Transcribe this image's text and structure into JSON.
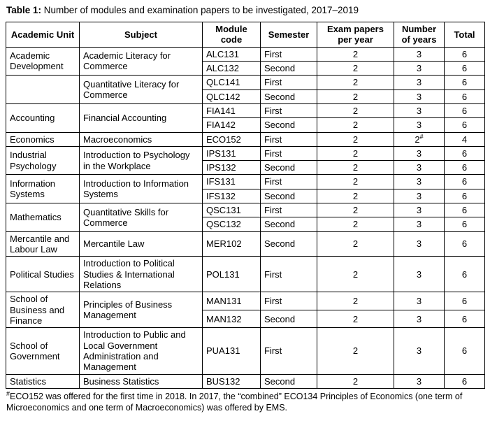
{
  "caption": {
    "prefix": "Table 1:",
    "text": " Number of modules and examination papers to be investigated, 2017–2019"
  },
  "table": {
    "columns": [
      {
        "label": "Academic Unit"
      },
      {
        "label": "Subject"
      },
      {
        "label": "Module code"
      },
      {
        "label": "Semester"
      },
      {
        "label": "Exam papers per year"
      },
      {
        "label": "Number of years"
      },
      {
        "label": "Total"
      }
    ],
    "rows": [
      {
        "cells": [
          {
            "text": "Academic Development",
            "rowspan": 2
          },
          {
            "text": "Academic Literacy for Commerce",
            "rowspan": 2
          },
          {
            "text": "ALC131"
          },
          {
            "text": "First"
          },
          {
            "text": "2"
          },
          {
            "text": "3"
          },
          {
            "text": "6"
          }
        ]
      },
      {
        "cells": [
          {
            "text": "ALC132"
          },
          {
            "text": "Second"
          },
          {
            "text": "2"
          },
          {
            "text": "3"
          },
          {
            "text": "6"
          }
        ]
      },
      {
        "cells": [
          {
            "text": "",
            "rowspan": 2
          },
          {
            "text": "Quantitative Literacy for Commerce",
            "rowspan": 2
          },
          {
            "text": "QLC141"
          },
          {
            "text": "First"
          },
          {
            "text": "2"
          },
          {
            "text": "3"
          },
          {
            "text": "6"
          }
        ]
      },
      {
        "cells": [
          {
            "text": "QLC142"
          },
          {
            "text": "Second"
          },
          {
            "text": "2"
          },
          {
            "text": "3"
          },
          {
            "text": "6"
          }
        ]
      },
      {
        "cells": [
          {
            "text": "Accounting",
            "rowspan": 2
          },
          {
            "text": "Financial Accounting",
            "rowspan": 2
          },
          {
            "text": "FIA141"
          },
          {
            "text": "First"
          },
          {
            "text": "2"
          },
          {
            "text": "3"
          },
          {
            "text": "6"
          }
        ]
      },
      {
        "cells": [
          {
            "text": "FIA142"
          },
          {
            "text": "Second"
          },
          {
            "text": "2"
          },
          {
            "text": "3"
          },
          {
            "text": "6"
          }
        ]
      },
      {
        "cells": [
          {
            "text": "Economics"
          },
          {
            "text": "Macroeconomics"
          },
          {
            "text": "ECO152"
          },
          {
            "text": "First"
          },
          {
            "text": "2"
          },
          {
            "text": "2",
            "sup": "#"
          },
          {
            "text": "4"
          }
        ]
      },
      {
        "cells": [
          {
            "text": "Industrial Psychology",
            "rowspan": 2
          },
          {
            "text": "Introduction to Psychology in the Workplace",
            "rowspan": 2
          },
          {
            "text": "IPS131"
          },
          {
            "text": "First"
          },
          {
            "text": "2"
          },
          {
            "text": "3"
          },
          {
            "text": "6"
          }
        ]
      },
      {
        "cells": [
          {
            "text": "IPS132"
          },
          {
            "text": "Second"
          },
          {
            "text": "2"
          },
          {
            "text": "3"
          },
          {
            "text": "6"
          }
        ]
      },
      {
        "cells": [
          {
            "text": "Information Systems",
            "rowspan": 2
          },
          {
            "text": "Introduction to Information Systems",
            "rowspan": 2
          },
          {
            "text": "IFS131"
          },
          {
            "text": "First"
          },
          {
            "text": "2"
          },
          {
            "text": "3"
          },
          {
            "text": "6"
          }
        ]
      },
      {
        "cells": [
          {
            "text": "IFS132"
          },
          {
            "text": "Second"
          },
          {
            "text": "2"
          },
          {
            "text": "3"
          },
          {
            "text": "6"
          }
        ]
      },
      {
        "cells": [
          {
            "text": "Mathematics",
            "rowspan": 2
          },
          {
            "text": "Quantitative Skills for Commerce",
            "rowspan": 2
          },
          {
            "text": "QSC131"
          },
          {
            "text": "First"
          },
          {
            "text": "2"
          },
          {
            "text": "3"
          },
          {
            "text": "6"
          }
        ]
      },
      {
        "cells": [
          {
            "text": "QSC132"
          },
          {
            "text": "Second"
          },
          {
            "text": "2"
          },
          {
            "text": "3"
          },
          {
            "text": "6"
          }
        ]
      },
      {
        "cells": [
          {
            "text": "Mercantile and Labour Law"
          },
          {
            "text": "Mercantile Law"
          },
          {
            "text": "MER102"
          },
          {
            "text": "Second"
          },
          {
            "text": "2"
          },
          {
            "text": "3"
          },
          {
            "text": "6"
          }
        ]
      },
      {
        "cells": [
          {
            "text": "Political Studies"
          },
          {
            "text": "Introduction to Political Studies & International Relations"
          },
          {
            "text": "POL131"
          },
          {
            "text": "First"
          },
          {
            "text": "2"
          },
          {
            "text": "3"
          },
          {
            "text": "6"
          }
        ]
      },
      {
        "cells": [
          {
            "text": "School of Business and Finance",
            "rowspan": 2
          },
          {
            "text": "Principles of Business Management",
            "rowspan": 2
          },
          {
            "text": "MAN131"
          },
          {
            "text": "First"
          },
          {
            "text": "2"
          },
          {
            "text": "3"
          },
          {
            "text": "6"
          }
        ]
      },
      {
        "cells": [
          {
            "text": "MAN132"
          },
          {
            "text": "Second"
          },
          {
            "text": "2"
          },
          {
            "text": "3"
          },
          {
            "text": "6"
          }
        ]
      },
      {
        "cells": [
          {
            "text": "School of Government"
          },
          {
            "text": "Introduction to Public and Local Government Administration and Management"
          },
          {
            "text": "PUA131"
          },
          {
            "text": "First"
          },
          {
            "text": "2"
          },
          {
            "text": "3"
          },
          {
            "text": "6"
          }
        ]
      },
      {
        "cells": [
          {
            "text": "Statistics"
          },
          {
            "text": "Business Statistics"
          },
          {
            "text": "BUS132"
          },
          {
            "text": "Second"
          },
          {
            "text": "2"
          },
          {
            "text": "3"
          },
          {
            "text": "6"
          }
        ]
      }
    ]
  },
  "footnote": {
    "sup": "#",
    "text": "ECO152 was offered for the first time in 2018. In 2017, the “combined” ECO134 Principles of Economics (one term of Microeconomics and one term of Macroeconomics) was offered by EMS."
  }
}
